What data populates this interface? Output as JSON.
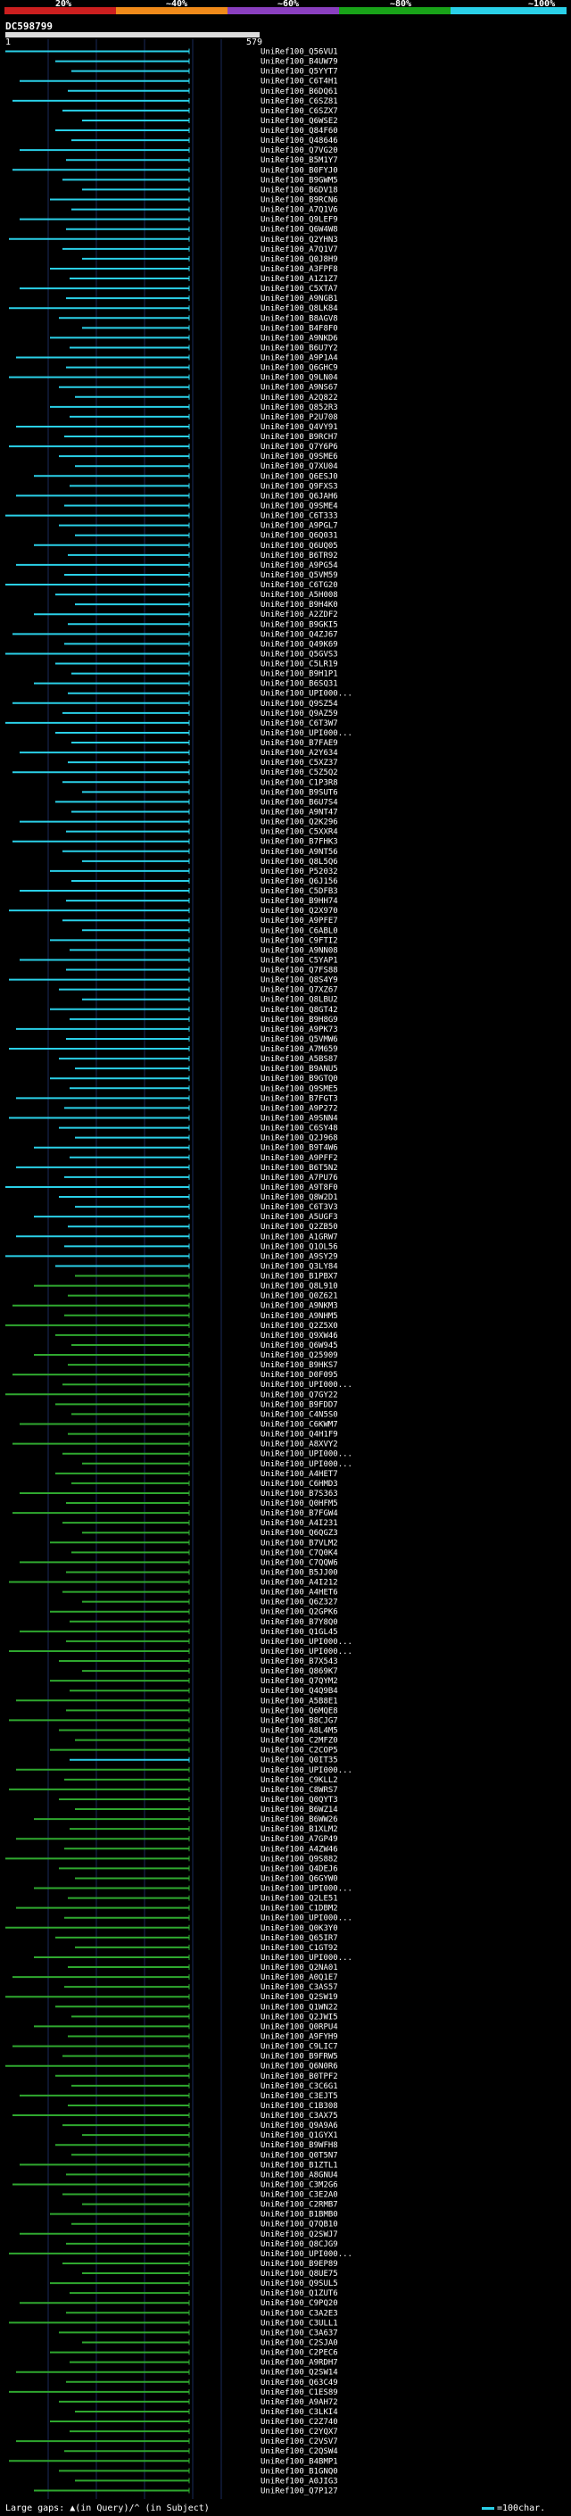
{
  "header": {
    "percent_labels": [
      "20%",
      "~40%",
      "~60%",
      "~80%",
      "~100%"
    ],
    "color_scale": [
      "#cc1f1f",
      "#f08a1a",
      "#8a3fbf",
      "#19a319",
      "#2ad0e8"
    ],
    "query_id": "DC598799",
    "query_start": "1",
    "query_end": "579"
  },
  "hits": [
    {
      "label": "UniRef100_Q56VU1",
      "color": "cyan"
    },
    {
      "label": "UniRef100_B4UW79",
      "color": "cyan"
    },
    {
      "label": "UniRef100_Q5YYT7",
      "color": "cyan"
    },
    {
      "label": "UniRef100_C6T4H1",
      "color": "cyan"
    },
    {
      "label": "UniRef100_B6DQ61",
      "color": "cyan"
    },
    {
      "label": "UniRef100_C6SZ81",
      "color": "cyan"
    },
    {
      "label": "UniRef100_C6SZX7",
      "color": "cyan"
    },
    {
      "label": "UniRef100_Q6WSE2",
      "color": "cyan"
    },
    {
      "label": "UniRef100_Q84F60",
      "color": "cyan"
    },
    {
      "label": "UniRef100_Q48646",
      "color": "cyan"
    },
    {
      "label": "UniRef100_Q7VG20",
      "color": "cyan"
    },
    {
      "label": "UniRef100_B5M1Y7",
      "color": "cyan"
    },
    {
      "label": "UniRef100_B0FYJ0",
      "color": "cyan"
    },
    {
      "label": "UniRef100_B9GWM5",
      "color": "cyan"
    },
    {
      "label": "UniRef100_B6DV18",
      "color": "cyan"
    },
    {
      "label": "UniRef100_B9RCN6",
      "color": "cyan"
    },
    {
      "label": "UniRef100_A7Q1V6",
      "color": "cyan"
    },
    {
      "label": "UniRef100_Q9LEF9",
      "color": "cyan"
    },
    {
      "label": "UniRef100_Q6W4W8",
      "color": "cyan"
    },
    {
      "label": "UniRef100_Q2YHN3",
      "color": "cyan"
    },
    {
      "label": "UniRef100_A7Q1V7",
      "color": "cyan"
    },
    {
      "label": "UniRef100_Q0J8H9",
      "color": "cyan"
    },
    {
      "label": "UniRef100_A3FPF8",
      "color": "cyan"
    },
    {
      "label": "UniRef100_A1Z1Z7",
      "color": "cyan"
    },
    {
      "label": "UniRef100_C5XTA7",
      "color": "cyan"
    },
    {
      "label": "UniRef100_A9NGB1",
      "color": "cyan"
    },
    {
      "label": "UniRef100_Q8LK84",
      "color": "cyan"
    },
    {
      "label": "UniRef100_B8AGV8",
      "color": "cyan"
    },
    {
      "label": "UniRef100_B4F8F0",
      "color": "cyan"
    },
    {
      "label": "UniRef100_A9NKD6",
      "color": "cyan"
    },
    {
      "label": "UniRef100_B6U7Y2",
      "color": "cyan"
    },
    {
      "label": "UniRef100_A9P1A4",
      "color": "cyan"
    },
    {
      "label": "UniRef100_Q6GHC9",
      "color": "cyan"
    },
    {
      "label": "UniRef100_Q9LN04",
      "color": "cyan"
    },
    {
      "label": "UniRef100_A9NS67",
      "color": "cyan"
    },
    {
      "label": "UniRef100_A2Q822",
      "color": "cyan"
    },
    {
      "label": "UniRef100_Q852R3",
      "color": "cyan"
    },
    {
      "label": "UniRef100_P2U708",
      "color": "cyan"
    },
    {
      "label": "UniRef100_Q4VY91",
      "color": "cyan"
    },
    {
      "label": "UniRef100_B9RCH7",
      "color": "cyan"
    },
    {
      "label": "UniRef100_Q7Y6P6",
      "color": "cyan"
    },
    {
      "label": "UniRef100_Q9SME6",
      "color": "cyan"
    },
    {
      "label": "UniRef100_Q7XU04",
      "color": "cyan"
    },
    {
      "label": "UniRef100_Q6ESJ0",
      "color": "cyan"
    },
    {
      "label": "UniRef100_Q9FXS3",
      "color": "cyan"
    },
    {
      "label": "UniRef100_Q6JAH6",
      "color": "cyan"
    },
    {
      "label": "UniRef100_Q9SME4",
      "color": "cyan"
    },
    {
      "label": "UniRef100_C6T333",
      "color": "cyan"
    },
    {
      "label": "UniRef100_A9PGL7",
      "color": "cyan"
    },
    {
      "label": "UniRef100_Q6Q031",
      "color": "cyan"
    },
    {
      "label": "UniRef100_Q6UQ05",
      "color": "cyan"
    },
    {
      "label": "UniRef100_B6TR92",
      "color": "cyan"
    },
    {
      "label": "UniRef100_A9PG54",
      "color": "cyan"
    },
    {
      "label": "UniRef100_Q5VM59",
      "color": "cyan"
    },
    {
      "label": "UniRef100_C6TG20",
      "color": "cyan"
    },
    {
      "label": "UniRef100_A5H008",
      "color": "cyan"
    },
    {
      "label": "UniRef100_B9H4K0",
      "color": "cyan"
    },
    {
      "label": "UniRef100_A2ZDF2",
      "color": "cyan"
    },
    {
      "label": "UniRef100_B9GKI5",
      "color": "cyan"
    },
    {
      "label": "UniRef100_Q4ZJ67",
      "color": "cyan"
    },
    {
      "label": "UniRef100_Q49K69",
      "color": "cyan"
    },
    {
      "label": "UniRef100_Q5GVS3",
      "color": "cyan"
    },
    {
      "label": "UniRef100_C5LR19",
      "color": "cyan"
    },
    {
      "label": "UniRef100_B9H1P1",
      "color": "cyan"
    },
    {
      "label": "UniRef100_B6SQ31",
      "color": "cyan"
    },
    {
      "label": "UniRef100_UPI000...",
      "color": "cyan"
    },
    {
      "label": "UniRef100_Q9SZ54",
      "color": "cyan"
    },
    {
      "label": "UniRef100_Q9AZ59",
      "color": "cyan"
    },
    {
      "label": "UniRef100_C6T3W7",
      "color": "cyan"
    },
    {
      "label": "UniRef100_UPI000...",
      "color": "cyan"
    },
    {
      "label": "UniRef100_B7FAE9",
      "color": "cyan"
    },
    {
      "label": "UniRef100_A2Y634",
      "color": "cyan"
    },
    {
      "label": "UniRef100_C5XZ37",
      "color": "cyan"
    },
    {
      "label": "UniRef100_C5Z5Q2",
      "color": "cyan"
    },
    {
      "label": "UniRef100_C1P3R8",
      "color": "cyan"
    },
    {
      "label": "UniRef100_B9SUT6",
      "color": "cyan"
    },
    {
      "label": "UniRef100_B6U7S4",
      "color": "cyan"
    },
    {
      "label": "UniRef100_A9NT47",
      "color": "cyan"
    },
    {
      "label": "UniRef100_Q2K296",
      "color": "cyan"
    },
    {
      "label": "UniRef100_C5XXR4",
      "color": "cyan"
    },
    {
      "label": "UniRef100_B7FHK3",
      "color": "cyan"
    },
    {
      "label": "UniRef100_A9NT56",
      "color": "cyan"
    },
    {
      "label": "UniRef100_Q8L5Q6",
      "color": "cyan"
    },
    {
      "label": "UniRef100_P52032",
      "color": "cyan"
    },
    {
      "label": "UniRef100_Q6J156",
      "color": "cyan"
    },
    {
      "label": "UniRef100_C5DFB3",
      "color": "cyan"
    },
    {
      "label": "UniRef100_B9HH74",
      "color": "cyan"
    },
    {
      "label": "UniRef100_Q2X970",
      "color": "cyan"
    },
    {
      "label": "UniRef100_A9PFE7",
      "color": "cyan"
    },
    {
      "label": "UniRef100_C6ABL0",
      "color": "cyan"
    },
    {
      "label": "UniRef100_C9FTI2",
      "color": "cyan"
    },
    {
      "label": "UniRef100_A9NN08",
      "color": "cyan"
    },
    {
      "label": "UniRef100_C5YAP1",
      "color": "cyan"
    },
    {
      "label": "UniRef100_Q7FS88",
      "color": "cyan"
    },
    {
      "label": "UniRef100_Q8S4Y9",
      "color": "cyan"
    },
    {
      "label": "UniRef100_Q7XZ67",
      "color": "cyan"
    },
    {
      "label": "UniRef100_Q8LBU2",
      "color": "cyan"
    },
    {
      "label": "UniRef100_Q8GT42",
      "color": "cyan"
    },
    {
      "label": "UniRef100_B9H8G9",
      "color": "cyan"
    },
    {
      "label": "UniRef100_A9PK73",
      "color": "cyan"
    },
    {
      "label": "UniRef100_Q5VMW6",
      "color": "cyan"
    },
    {
      "label": "UniRef100_A7M659",
      "color": "cyan"
    },
    {
      "label": "UniRef100_A5BS87",
      "color": "cyan"
    },
    {
      "label": "UniRef100_B9ANU5",
      "color": "cyan"
    },
    {
      "label": "UniRef100_B9GTQ0",
      "color": "cyan"
    },
    {
      "label": "UniRef100_Q9SME5",
      "color": "cyan"
    },
    {
      "label": "UniRef100_B7FGT3",
      "color": "cyan"
    },
    {
      "label": "UniRef100_A9P272",
      "color": "cyan"
    },
    {
      "label": "UniRef100_A9SNN4",
      "color": "cyan"
    },
    {
      "label": "UniRef100_C6SY48",
      "color": "cyan"
    },
    {
      "label": "UniRef100_Q2J968",
      "color": "cyan"
    },
    {
      "label": "UniRef100_B9T4W6",
      "color": "cyan"
    },
    {
      "label": "UniRef100_A9PFF2",
      "color": "cyan"
    },
    {
      "label": "UniRef100_B6T5N2",
      "color": "cyan"
    },
    {
      "label": "UniRef100_A7PU76",
      "color": "cyan"
    },
    {
      "label": "UniRef100_A9T8F0",
      "color": "cyan"
    },
    {
      "label": "UniRef100_Q8W2D1",
      "color": "cyan"
    },
    {
      "label": "UniRef100_C6T3V3",
      "color": "cyan"
    },
    {
      "label": "UniRef100_A5UGF3",
      "color": "cyan"
    },
    {
      "label": "UniRef100_Q2ZB50",
      "color": "cyan"
    },
    {
      "label": "UniRef100_A1GRW7",
      "color": "cyan"
    },
    {
      "label": "UniRef100_Q1OL56",
      "color": "cyan"
    },
    {
      "label": "UniRef100_A9SY29",
      "color": "cyan"
    },
    {
      "label": "UniRef100_Q3LY84",
      "color": "cyan"
    },
    {
      "label": "UniRef100_B1PBX7",
      "color": "green"
    },
    {
      "label": "UniRef100_Q8L910",
      "color": "green"
    },
    {
      "label": "UniRef100_Q0Z621",
      "color": "green"
    },
    {
      "label": "UniRef100_A9NKM3",
      "color": "green"
    },
    {
      "label": "UniRef100_A9NHM5",
      "color": "green"
    },
    {
      "label": "UniRef100_Q2Z5X0",
      "color": "green"
    },
    {
      "label": "UniRef100_Q9XW46",
      "color": "green"
    },
    {
      "label": "UniRef100_Q6W945",
      "color": "green"
    },
    {
      "label": "UniRef100_Q25909",
      "color": "green"
    },
    {
      "label": "UniRef100_B9HKS7",
      "color": "green"
    },
    {
      "label": "UniRef100_D0F095",
      "color": "green"
    },
    {
      "label": "UniRef100_UPI000...",
      "color": "green"
    },
    {
      "label": "UniRef100_Q7GY22",
      "color": "green"
    },
    {
      "label": "UniRef100_B9FDD7",
      "color": "green"
    },
    {
      "label": "UniRef100_C4N5S0",
      "color": "green"
    },
    {
      "label": "UniRef100_C6KWM7",
      "color": "green"
    },
    {
      "label": "UniRef100_Q4H1F9",
      "color": "green"
    },
    {
      "label": "UniRef100_A8XVY2",
      "color": "green"
    },
    {
      "label": "UniRef100_UPI000...",
      "color": "green"
    },
    {
      "label": "UniRef100_UPI000...",
      "color": "green"
    },
    {
      "label": "UniRef100_A4HET7",
      "color": "green"
    },
    {
      "label": "UniRef100_C6HMD3",
      "color": "green"
    },
    {
      "label": "UniRef100_B7S363",
      "color": "green"
    },
    {
      "label": "UniRef100_Q0HFM5",
      "color": "green"
    },
    {
      "label": "UniRef100_B7FGW4",
      "color": "green"
    },
    {
      "label": "UniRef100_A4I231",
      "color": "green"
    },
    {
      "label": "UniRef100_Q6QGZ3",
      "color": "green"
    },
    {
      "label": "UniRef100_B7VLM2",
      "color": "green"
    },
    {
      "label": "UniRef100_C7Q0K4",
      "color": "green"
    },
    {
      "label": "UniRef100_C7QQW6",
      "color": "green"
    },
    {
      "label": "UniRef100_B5JJ00",
      "color": "green"
    },
    {
      "label": "UniRef100_A4I212",
      "color": "green"
    },
    {
      "label": "UniRef100_A4HET6",
      "color": "green"
    },
    {
      "label": "UniRef100_Q6Z327",
      "color": "green"
    },
    {
      "label": "UniRef100_Q2GPK6",
      "color": "green"
    },
    {
      "label": "UniRef100_B7Y8Q0",
      "color": "green"
    },
    {
      "label": "UniRef100_Q1GL45",
      "color": "green"
    },
    {
      "label": "UniRef100_UPI000...",
      "color": "green"
    },
    {
      "label": "UniRef100_UPI000...",
      "color": "green"
    },
    {
      "label": "UniRef100_B7X543",
      "color": "green"
    },
    {
      "label": "UniRef100_Q869K7",
      "color": "green"
    },
    {
      "label": "UniRef100_Q7QYM2",
      "color": "green"
    },
    {
      "label": "UniRef100_Q4Q9B4",
      "color": "green"
    },
    {
      "label": "UniRef100_A5B8E1",
      "color": "green"
    },
    {
      "label": "UniRef100_Q6MQE8",
      "color": "green"
    },
    {
      "label": "UniRef100_B8CJG7",
      "color": "green"
    },
    {
      "label": "UniRef100_A8L4M5",
      "color": "green"
    },
    {
      "label": "UniRef100_C2MFZ0",
      "color": "green"
    },
    {
      "label": "UniRef100_C2COP5",
      "color": "green"
    },
    {
      "label": "UniRef100_Q0IT35",
      "color": "cyan"
    },
    {
      "label": "UniRef100_UPI000...",
      "color": "green"
    },
    {
      "label": "UniRef100_C9KLL2",
      "color": "green"
    },
    {
      "label": "UniRef100_C8WRS7",
      "color": "green"
    },
    {
      "label": "UniRef100_Q0QYT3",
      "color": "green"
    },
    {
      "label": "UniRef100_B6WZ14",
      "color": "green"
    },
    {
      "label": "UniRef100_B6WW26",
      "color": "green"
    },
    {
      "label": "UniRef100_B1XLM2",
      "color": "green"
    },
    {
      "label": "UniRef100_A7GP49",
      "color": "green"
    },
    {
      "label": "UniRef100_A4ZW46",
      "color": "green"
    },
    {
      "label": "UniRef100_Q9S882",
      "color": "green"
    },
    {
      "label": "UniRef100_Q4DEJ6",
      "color": "green"
    },
    {
      "label": "UniRef100_Q6GYW0",
      "color": "green"
    },
    {
      "label": "UniRef100_UPI000...",
      "color": "green"
    },
    {
      "label": "UniRef100_Q2LE51",
      "color": "green"
    },
    {
      "label": "UniRef100_C1DBM2",
      "color": "green"
    },
    {
      "label": "UniRef100_UPI000...",
      "color": "green"
    },
    {
      "label": "UniRef100_Q0K3Y0",
      "color": "green"
    },
    {
      "label": "UniRef100_Q65IR7",
      "color": "green"
    },
    {
      "label": "UniRef100_C1GT92",
      "color": "green"
    },
    {
      "label": "UniRef100_UPI000...",
      "color": "green"
    },
    {
      "label": "UniRef100_Q2NA01",
      "color": "green"
    },
    {
      "label": "UniRef100_A0Q1E7",
      "color": "green"
    },
    {
      "label": "UniRef100_C3AS57",
      "color": "green"
    },
    {
      "label": "UniRef100_Q2SW19",
      "color": "green"
    },
    {
      "label": "UniRef100_Q1WN22",
      "color": "green"
    },
    {
      "label": "UniRef100_Q2JWI5",
      "color": "green"
    },
    {
      "label": "UniRef100_Q0RPU4",
      "color": "green"
    },
    {
      "label": "UniRef100_A9FYH9",
      "color": "green"
    },
    {
      "label": "UniRef100_C9LIC7",
      "color": "green"
    },
    {
      "label": "UniRef100_B9FRW5",
      "color": "green"
    },
    {
      "label": "UniRef100_Q6N0R6",
      "color": "green"
    },
    {
      "label": "UniRef100_B0TPF2",
      "color": "green"
    },
    {
      "label": "UniRef100_C3C6G1",
      "color": "green"
    },
    {
      "label": "UniRef100_C3EJT5",
      "color": "green"
    },
    {
      "label": "UniRef100_C1B308",
      "color": "green"
    },
    {
      "label": "UniRef100_C3AX75",
      "color": "green"
    },
    {
      "label": "UniRef100_Q9A9A6",
      "color": "green"
    },
    {
      "label": "UniRef100_Q1GYX1",
      "color": "green"
    },
    {
      "label": "UniRef100_B9WFH8",
      "color": "green"
    },
    {
      "label": "UniRef100_Q0T5N7",
      "color": "green"
    },
    {
      "label": "UniRef100_B1ZTL1",
      "color": "green"
    },
    {
      "label": "UniRef100_A8GNU4",
      "color": "green"
    },
    {
      "label": "UniRef100_C3M2G6",
      "color": "green"
    },
    {
      "label": "UniRef100_C3E2A0",
      "color": "green"
    },
    {
      "label": "UniRef100_C2RMB7",
      "color": "green"
    },
    {
      "label": "UniRef100_B1BMB0",
      "color": "green"
    },
    {
      "label": "UniRef100_Q7QB10",
      "color": "green"
    },
    {
      "label": "UniRef100_Q2SWJ7",
      "color": "green"
    },
    {
      "label": "UniRef100_Q8CJG9",
      "color": "green"
    },
    {
      "label": "UniRef100_UPI000...",
      "color": "green"
    },
    {
      "label": "UniRef100_B9EP89",
      "color": "green"
    },
    {
      "label": "UniRef100_Q8UE75",
      "color": "green"
    },
    {
      "label": "UniRef100_Q9SUL5",
      "color": "green"
    },
    {
      "label": "UniRef100_Q1ZUT6",
      "color": "green"
    },
    {
      "label": "UniRef100_C9PQ20",
      "color": "green"
    },
    {
      "label": "UniRef100_C3A2E3",
      "color": "green"
    },
    {
      "label": "UniRef100_C3ULL1",
      "color": "green"
    },
    {
      "label": "UniRef100_C3A637",
      "color": "green"
    },
    {
      "label": "UniRef100_C2SJA0",
      "color": "green"
    },
    {
      "label": "UniRef100_C2PEC6",
      "color": "green"
    },
    {
      "label": "UniRef100_A9RDH7",
      "color": "green"
    },
    {
      "label": "UniRef100_Q2SW14",
      "color": "green"
    },
    {
      "label": "UniRef100_Q63C49",
      "color": "green"
    },
    {
      "label": "UniRef100_C1ES89",
      "color": "green"
    },
    {
      "label": "UniRef100_A9AH72",
      "color": "green"
    },
    {
      "label": "UniRef100_C3LKI4",
      "color": "green"
    },
    {
      "label": "UniRef100_C2Z740",
      "color": "green"
    },
    {
      "label": "UniRef100_C2YQX7",
      "color": "green"
    },
    {
      "label": "UniRef100_C2VSV7",
      "color": "green"
    },
    {
      "label": "UniRef100_C2QSW4",
      "color": "green"
    },
    {
      "label": "UniRef100_B4BMP1",
      "color": "green"
    },
    {
      "label": "UniRef100_B1GNQ0",
      "color": "green"
    },
    {
      "label": "UniRef100_A0JIG3",
      "color": "green"
    },
    {
      "label": "UniRef100_Q7P127",
      "color": "green"
    }
  ],
  "footer": {
    "gaps_text": "Large gaps: ▲(in Query)/^ (in Subject)",
    "scale_text": "=100char."
  }
}
